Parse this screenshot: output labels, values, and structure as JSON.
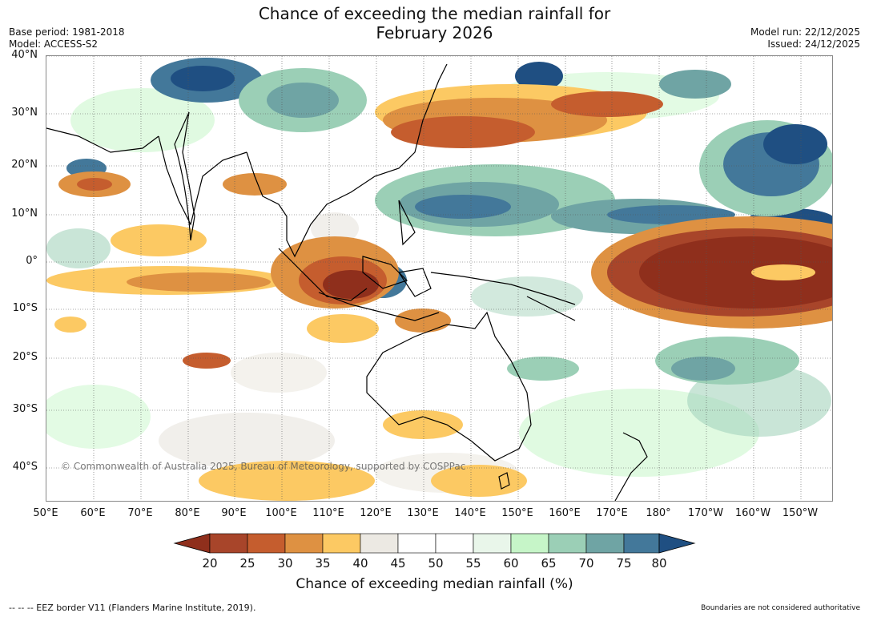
{
  "title": {
    "line1": "Chance of exceeding the median rainfall for",
    "line2": "February 2026"
  },
  "meta": {
    "base_period": "Base period: 1981-2018",
    "model": "Model: ACCESS-S2",
    "model_run": "Model run: 22/12/2025",
    "issued": "Issued: 24/12/2025"
  },
  "map": {
    "lat_labels": [
      "40°N",
      "30°N",
      "20°N",
      "10°N",
      "0°",
      "10°S",
      "20°S",
      "30°S",
      "40°S"
    ],
    "lon_labels": [
      "50°E",
      "60°E",
      "70°E",
      "80°E",
      "90°E",
      "100°E",
      "110°E",
      "120°E",
      "130°E",
      "140°E",
      "150°E",
      "160°E",
      "170°E",
      "180°",
      "170°W",
      "160°W",
      "150°W"
    ],
    "copyright": "© Commonwealth of Australia 2025, Bureau of Meteorology, supported by COSPPac",
    "colors": {
      "le20": "#8f2f1c",
      "20-25": "#a8452a",
      "25-30": "#c55d2e",
      "30-35": "#de9142",
      "35-40": "#fcc963",
      "40-45": "#ece9e3",
      "45-50": "#ffffff",
      "50-55": "#ffffff",
      "55-60": "#e9f6ea",
      "60-65": "#c6f5c8",
      "65-70": "#9bcfb6",
      "70-75": "#6fa4a4",
      "75-80": "#43789a",
      "ge80": "#1f4f82"
    }
  },
  "colorbar": {
    "ticks": [
      "20",
      "25",
      "30",
      "35",
      "40",
      "45",
      "50",
      "55",
      "60",
      "65",
      "70",
      "75",
      "80"
    ],
    "label": "Chance of exceeding median rainfall (%)"
  },
  "footer": {
    "eez": "--  --  -- EEZ border V11 (Flanders Marine Institute, 2019).",
    "disclaimer": "Boundaries are not considered authoritative"
  }
}
